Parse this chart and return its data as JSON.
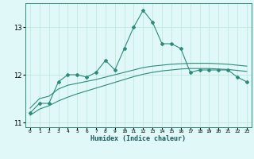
{
  "xlabel": "Humidex (Indice chaleur)",
  "x": [
    0,
    1,
    2,
    3,
    4,
    5,
    6,
    7,
    8,
    9,
    10,
    11,
    12,
    13,
    14,
    15,
    16,
    17,
    18,
    19,
    20,
    21,
    22,
    23
  ],
  "line1": [
    11.2,
    11.4,
    11.4,
    11.85,
    12.0,
    12.0,
    11.95,
    12.05,
    12.3,
    12.1,
    12.55,
    13.0,
    13.35,
    13.1,
    12.65,
    12.65,
    12.55,
    12.05,
    12.1,
    12.1,
    12.1,
    12.1,
    11.95,
    11.85
  ],
  "line2": [
    11.3,
    11.5,
    11.55,
    11.7,
    11.78,
    11.82,
    11.86,
    11.9,
    11.95,
    12.0,
    12.05,
    12.1,
    12.15,
    12.18,
    12.2,
    12.22,
    12.23,
    12.24,
    12.24,
    12.24,
    12.23,
    12.22,
    12.2,
    12.18
  ],
  "line3": [
    11.15,
    11.28,
    11.35,
    11.45,
    11.53,
    11.6,
    11.66,
    11.72,
    11.78,
    11.84,
    11.9,
    11.96,
    12.01,
    12.05,
    12.08,
    12.1,
    12.12,
    12.13,
    12.13,
    12.13,
    12.12,
    12.11,
    12.09,
    12.07
  ],
  "line_color": "#2e8b7a",
  "bg_color": "#e0f8f8",
  "grid_color": "#c0e8e0",
  "ylim": [
    10.9,
    13.5
  ],
  "yticks": [
    11,
    12,
    13
  ],
  "xlim": [
    -0.5,
    23.5
  ]
}
